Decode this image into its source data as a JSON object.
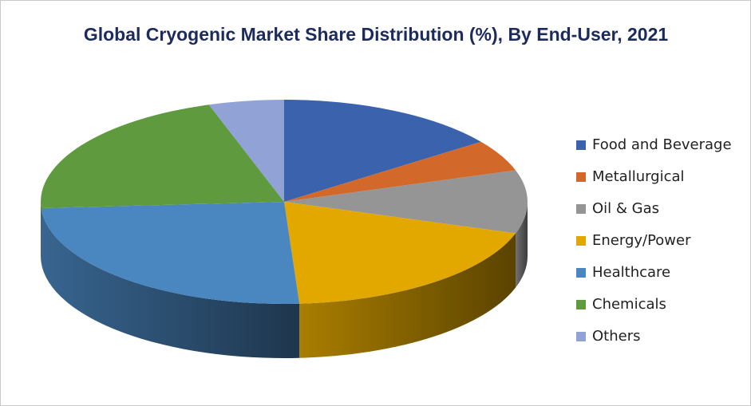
{
  "chart_data": {
    "type": "pie3d",
    "title": "Global Cryogenic Market Share Distribution (%), By End-User, 2021",
    "categories": [
      "Food and Beverage",
      "Metallurgical",
      "Oil & Gas",
      "Energy/Power",
      "Healthcare",
      "Chemicals",
      "Others"
    ],
    "values": [
      15,
      5,
      10,
      19,
      25,
      21,
      5
    ],
    "colors": [
      "#3b62ad",
      "#d2692a",
      "#959595",
      "#e2a800",
      "#4a87c0",
      "#5f9b3e",
      "#90a2d6"
    ],
    "legend": "right"
  }
}
